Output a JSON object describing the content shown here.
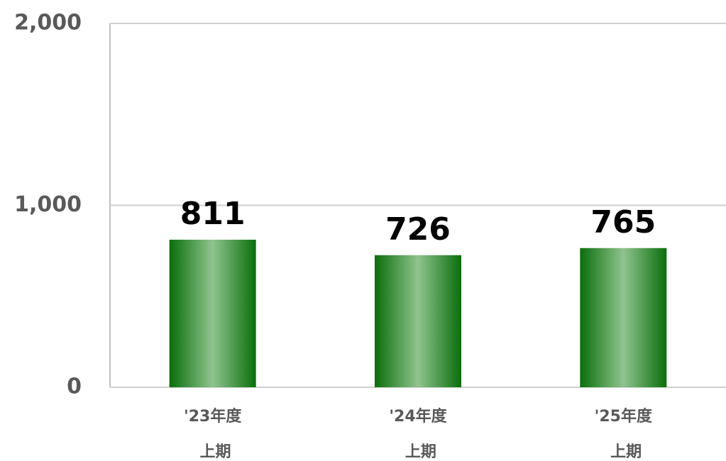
{
  "chart_data": {
    "type": "bar",
    "categories": [
      "'23年度\n上期",
      "'24年度\n上期",
      "'25年度\n上期"
    ],
    "values": [
      811,
      726,
      765
    ],
    "color": "#0a6e0a",
    "ylim": [
      0,
      2000
    ],
    "yticks": [
      0,
      {
        "value": 1000,
        "label": "1,000"
      },
      {
        "value": 2000,
        "label": "2,000"
      }
    ],
    "grid": true
  }
}
